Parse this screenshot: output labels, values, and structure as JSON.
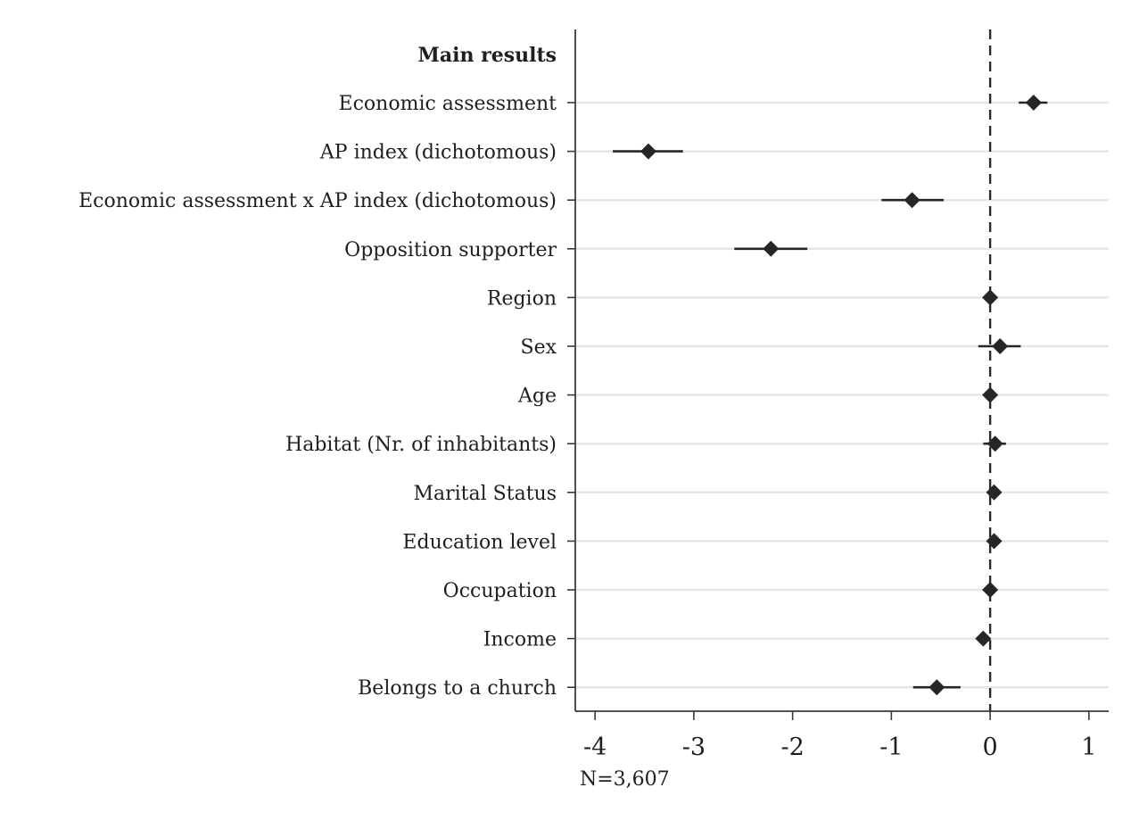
{
  "chart_data": {
    "type": "scatter",
    "subtype": "coefficient-plot",
    "orientation": "horizontal",
    "header": "Main results",
    "xlim": [
      -4.2,
      1.2
    ],
    "xticks": [
      -4,
      -3,
      -2,
      -1,
      0,
      1
    ],
    "xtick_labels": [
      "-4",
      "-3",
      "-2",
      "-1",
      "0",
      "1"
    ],
    "reference_line": {
      "x": 0,
      "style": "dashed"
    },
    "grid": true,
    "marker": "diamond",
    "colors": {
      "marker": "#262626",
      "ci": "#262626",
      "grid": "#e6e6e6",
      "axis": "#3a3a3a",
      "text": "#1f1f1f"
    },
    "note": "N=3,607",
    "series": [
      {
        "name": "",
        "points": [
          {
            "label": "Economic assessment",
            "estimate": 0.44,
            "ci": [
              0.29,
              0.58
            ]
          },
          {
            "label": "AP index (dichotomous)",
            "estimate": -3.46,
            "ci": [
              -3.82,
              -3.11
            ]
          },
          {
            "label": "Economic assessment x AP index (dichotomous)",
            "estimate": -0.79,
            "ci": [
              -1.1,
              -0.47
            ]
          },
          {
            "label": "Opposition supporter",
            "estimate": -2.22,
            "ci": [
              -2.59,
              -1.85
            ]
          },
          {
            "label": "Region",
            "estimate": 0.0,
            "ci": [
              -0.02,
              0.02
            ]
          },
          {
            "label": "Sex",
            "estimate": 0.1,
            "ci": [
              -0.12,
              0.31
            ]
          },
          {
            "label": "Age",
            "estimate": 0.0,
            "ci": [
              -0.01,
              0.01
            ]
          },
          {
            "label": "Habitat (Nr. of inhabitants)",
            "estimate": 0.05,
            "ci": [
              -0.07,
              0.16
            ]
          },
          {
            "label": "Marital Status",
            "estimate": 0.04,
            "ci": [
              -0.02,
              0.1
            ]
          },
          {
            "label": "Education level",
            "estimate": 0.04,
            "ci": [
              -0.01,
              0.09
            ]
          },
          {
            "label": "Occupation",
            "estimate": 0.0,
            "ci": [
              -0.02,
              0.02
            ]
          },
          {
            "label": "Income",
            "estimate": -0.07,
            "ci": [
              -0.1,
              -0.04
            ]
          },
          {
            "label": "Belongs to a church",
            "estimate": -0.54,
            "ci": [
              -0.78,
              -0.3
            ]
          }
        ]
      }
    ]
  }
}
